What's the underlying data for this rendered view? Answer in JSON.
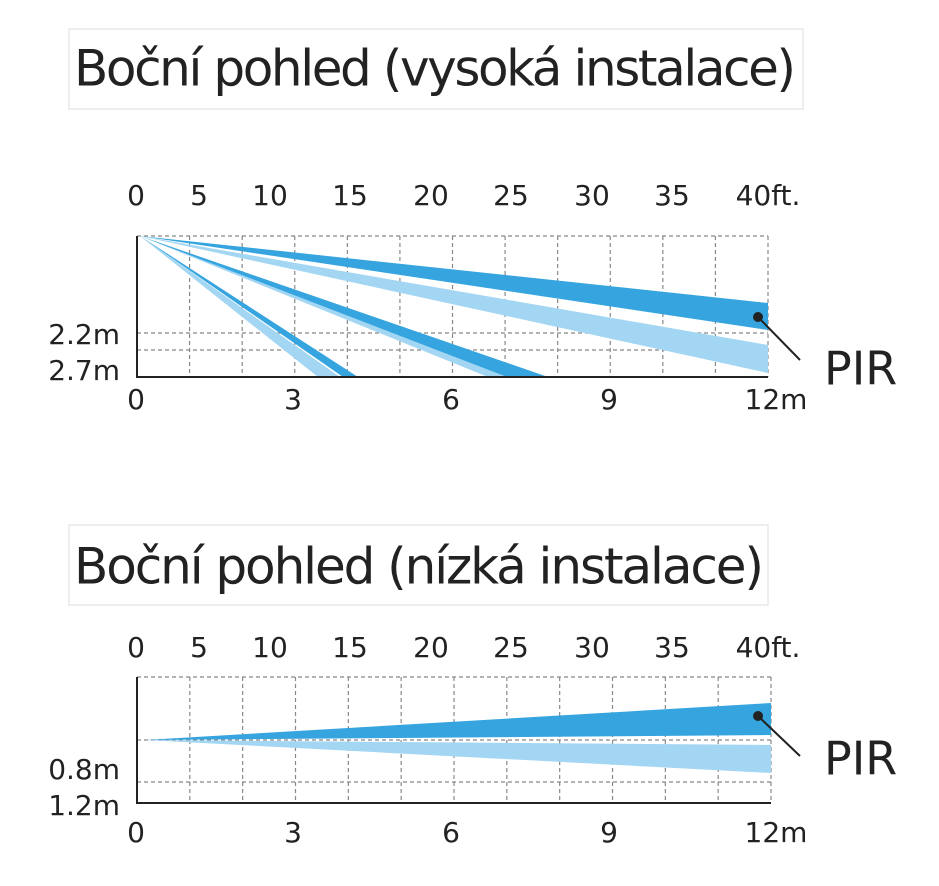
{
  "panels": [
    {
      "title": "Boční pohled (vysoká instalace)",
      "ft_ticks": [
        "0",
        "5",
        "10",
        "15",
        "20",
        "25",
        "30",
        "35",
        "40ft."
      ],
      "m_ticks": [
        "0",
        "3",
        "6",
        "9",
        "12m"
      ],
      "height_labels": [
        "2.2m",
        "2.7m"
      ],
      "sensor_label": "PIR"
    },
    {
      "title": "Boční pohled (nízká instalace)",
      "ft_ticks": [
        "0",
        "5",
        "10",
        "15",
        "20",
        "25",
        "30",
        "35",
        "40ft."
      ],
      "m_ticks": [
        "0",
        "3",
        "6",
        "9",
        "12m"
      ],
      "height_labels": [
        "0.8m",
        "1.2m"
      ],
      "sensor_label": "PIR"
    }
  ]
}
